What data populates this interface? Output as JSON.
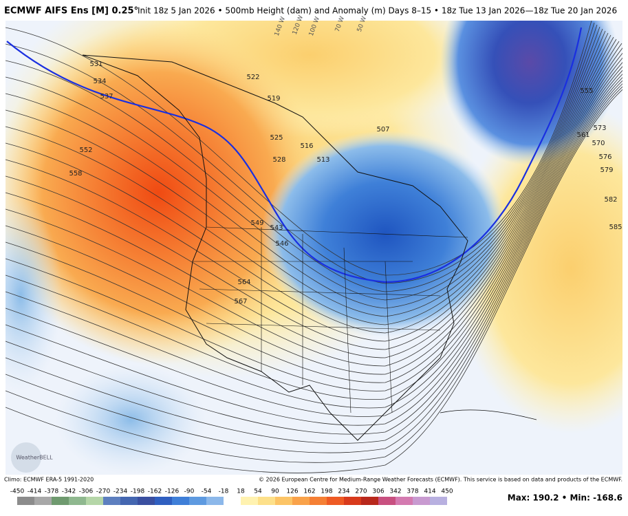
{
  "header": {
    "title": "ECMWF AIFS Ens [M] 0.25°",
    "subtitle": "Init 18z 5 Jan 2026 • 500mb Height (dam) and Anomaly (m) Days 8–15 • 18z Tue 13 Jan 2026—18z Tue 20 Jan 2026"
  },
  "map": {
    "contour_labels": [
      "531",
      "534",
      "537",
      "552",
      "558",
      "522",
      "519",
      "525",
      "528",
      "516",
      "513",
      "507",
      "549",
      "543",
      "546",
      "564",
      "567",
      "555",
      "561",
      "570",
      "573",
      "576",
      "579",
      "582",
      "585"
    ],
    "longitude_labels": [
      "140 W",
      "120 W",
      "100 W",
      "70 W",
      "50 W"
    ],
    "logo": "WeatherBELL"
  },
  "footer": {
    "climo": "Climo: ECMWF ERA-5 1991-2020",
    "copyright": "© 2026 European Centre for Medium-Range Weather Forecasts (ECMWF). This service is based on data and products of the ECMWF.",
    "stats": "Max: 190.2 • Min: -168.6"
  },
  "colorbar": {
    "labels": [
      "-450",
      "-414",
      "-378",
      "-342",
      "-306",
      "-270",
      "-234",
      "-198",
      "-162",
      "-126",
      "-90",
      "-54",
      "-18",
      "18",
      "54",
      "90",
      "126",
      "162",
      "198",
      "234",
      "270",
      "306",
      "342",
      "378",
      "414",
      "450"
    ],
    "colors": [
      "#8c8c8c",
      "#a8a8a8",
      "#6f9a6f",
      "#8fb88f",
      "#b5d6a8",
      "#5d7fbf",
      "#4466b0",
      "#3a4fa0",
      "#2f5fc0",
      "#3f7fd8",
      "#5e9ae0",
      "#8cb8ea",
      "#ffffff",
      "#fff2b0",
      "#fde08a",
      "#fcc466",
      "#f9a24a",
      "#f57f34",
      "#ee5a24",
      "#d83a1c",
      "#b8281c",
      "#c85080",
      "#d47ab0",
      "#c89ad0",
      "#b8b0e0"
    ]
  }
}
